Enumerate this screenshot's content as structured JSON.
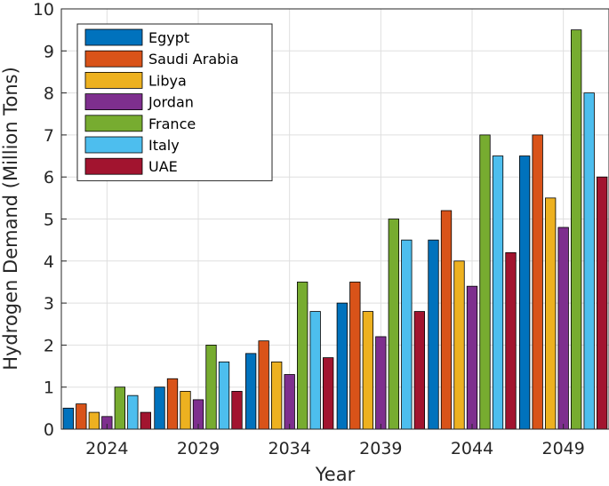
{
  "chart_data": {
    "type": "bar",
    "title": "",
    "xlabel": "Year",
    "ylabel": "Hydrogen Demand (Million Tons)",
    "categories": [
      "2024",
      "2029",
      "2034",
      "2039",
      "2044",
      "2049"
    ],
    "ylim": [
      0,
      10
    ],
    "yticks": [
      "0",
      "1",
      "2",
      "3",
      "4",
      "5",
      "6",
      "7",
      "8",
      "9",
      "10"
    ],
    "grid": true,
    "legend_position": "top-left",
    "series": [
      {
        "name": "Egypt",
        "color": "#0072BD",
        "values": [
          0.5,
          1.0,
          1.8,
          3.0,
          4.5,
          6.5
        ]
      },
      {
        "name": "Saudi Arabia",
        "color": "#D95319",
        "values": [
          0.6,
          1.2,
          2.1,
          3.5,
          5.2,
          7.0
        ]
      },
      {
        "name": "Libya",
        "color": "#EDB120",
        "values": [
          0.4,
          0.9,
          1.6,
          2.8,
          4.0,
          5.5
        ]
      },
      {
        "name": "Jordan",
        "color": "#7E2F8E",
        "values": [
          0.3,
          0.7,
          1.3,
          2.2,
          3.4,
          4.8
        ]
      },
      {
        "name": "France",
        "color": "#77AC30",
        "values": [
          1.0,
          2.0,
          3.5,
          5.0,
          7.0,
          9.5
        ]
      },
      {
        "name": "Italy",
        "color": "#4DBEEE",
        "values": [
          0.8,
          1.6,
          2.8,
          4.5,
          6.5,
          8.0
        ]
      },
      {
        "name": "UAE",
        "color": "#A2142F",
        "values": [
          0.4,
          0.9,
          1.7,
          2.8,
          4.2,
          6.0
        ]
      }
    ]
  }
}
